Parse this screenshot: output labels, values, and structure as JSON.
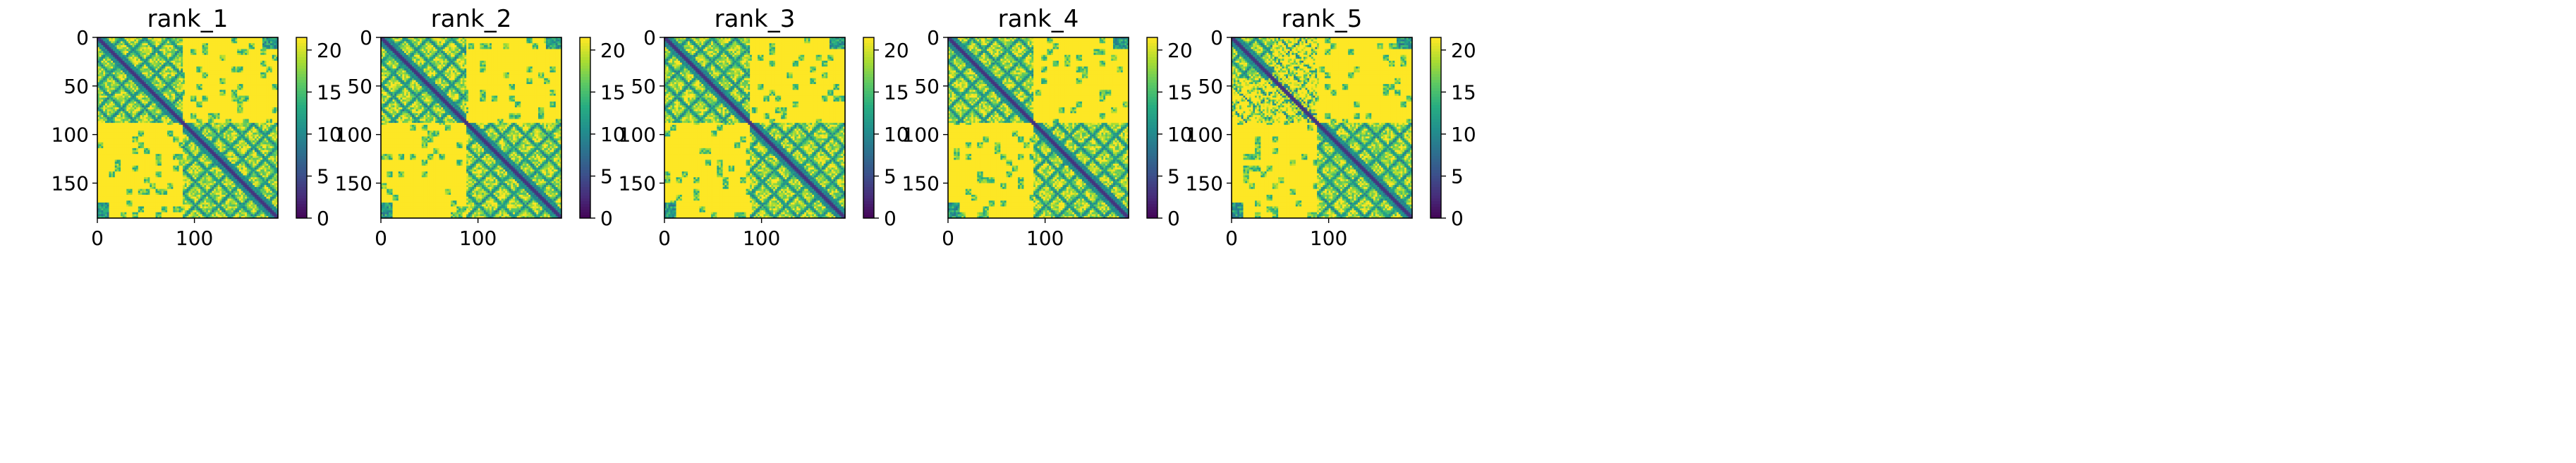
{
  "figure": {
    "panel_titles": [
      "rank_1",
      "rank_2",
      "rank_3",
      "rank_4",
      "rank_5"
    ]
  },
  "chart_data": [
    {
      "type": "heatmap",
      "title": "rank_1",
      "matrix_size": 186,
      "x_ticks": [
        0,
        100
      ],
      "y_ticks": [
        0,
        50,
        100,
        150
      ],
      "xlim": [
        0,
        186
      ],
      "ylim": [
        186,
        0
      ],
      "colorbar": {
        "min": 0,
        "max": 21.5,
        "ticks": [
          0,
          5,
          10,
          15,
          20
        ],
        "colormap": "viridis"
      },
      "domain_boundary": 88,
      "variant": 0
    },
    {
      "type": "heatmap",
      "title": "rank_2",
      "matrix_size": 186,
      "x_ticks": [
        0,
        100
      ],
      "y_ticks": [
        0,
        50,
        100,
        150
      ],
      "xlim": [
        0,
        186
      ],
      "ylim": [
        186,
        0
      ],
      "colorbar": {
        "min": 0,
        "max": 21.5,
        "ticks": [
          0,
          5,
          10,
          15,
          20
        ],
        "colormap": "viridis"
      },
      "domain_boundary": 88,
      "variant": 1
    },
    {
      "type": "heatmap",
      "title": "rank_3",
      "matrix_size": 186,
      "x_ticks": [
        0,
        100
      ],
      "y_ticks": [
        0,
        50,
        100,
        150
      ],
      "xlim": [
        0,
        186
      ],
      "ylim": [
        186,
        0
      ],
      "colorbar": {
        "min": 0,
        "max": 21.5,
        "ticks": [
          0,
          5,
          10,
          15,
          20
        ],
        "colormap": "viridis"
      },
      "domain_boundary": 88,
      "variant": 2
    },
    {
      "type": "heatmap",
      "title": "rank_4",
      "matrix_size": 186,
      "x_ticks": [
        0,
        100
      ],
      "y_ticks": [
        0,
        50,
        100,
        150
      ],
      "xlim": [
        0,
        186
      ],
      "ylim": [
        186,
        0
      ],
      "colorbar": {
        "min": 0,
        "max": 21.5,
        "ticks": [
          0,
          5,
          10,
          15,
          20
        ],
        "colormap": "viridis"
      },
      "domain_boundary": 88,
      "variant": 3
    },
    {
      "type": "heatmap",
      "title": "rank_5",
      "matrix_size": 186,
      "x_ticks": [
        0,
        100
      ],
      "y_ticks": [
        0,
        50,
        100,
        150
      ],
      "xlim": [
        0,
        186
      ],
      "ylim": [
        186,
        0
      ],
      "colorbar": {
        "min": 0,
        "max": 21.5,
        "ticks": [
          0,
          5,
          10,
          15,
          20
        ],
        "colormap": "viridis"
      },
      "domain_boundary": 88,
      "variant": 4
    }
  ]
}
